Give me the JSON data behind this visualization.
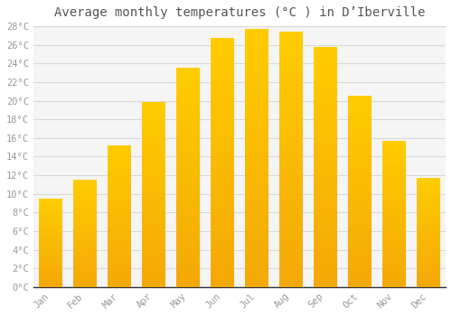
{
  "title": "Average monthly temperatures (°C ) in D’Iberville",
  "months": [
    "Jan",
    "Feb",
    "Mar",
    "Apr",
    "May",
    "Jun",
    "Jul",
    "Aug",
    "Sep",
    "Oct",
    "Nov",
    "Dec"
  ],
  "values": [
    9.5,
    11.5,
    15.2,
    19.8,
    23.5,
    26.7,
    27.7,
    27.4,
    25.8,
    20.5,
    15.7,
    11.7
  ],
  "bar_color_top": "#FFCC00",
  "bar_color_bottom": "#F5A800",
  "bar_edge_color": "#E8A000",
  "ylim": [
    0,
    28
  ],
  "ytick_step": 2,
  "background_color": "#ffffff",
  "plot_bg_color": "#f5f5f5",
  "grid_color": "#d8d8d8",
  "title_fontsize": 10,
  "tick_fontsize": 7.5,
  "tick_color": "#999999",
  "font_family": "monospace",
  "bar_width": 0.7
}
